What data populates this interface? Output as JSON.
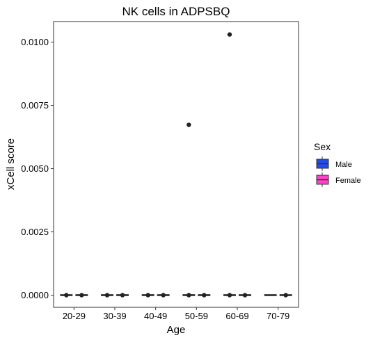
{
  "chart_data": {
    "type": "boxplot",
    "title": "NK cells in ADPSBQ",
    "xlabel": "Age",
    "ylabel": "xCell score",
    "categories": [
      "20-29",
      "30-39",
      "40-49",
      "50-59",
      "60-69",
      "70-79"
    ],
    "y_ticks": [
      "0.0000",
      "0.0025",
      "0.0050",
      "0.0075",
      "0.0100"
    ],
    "ylim": [
      -0.0005,
      0.0108
    ],
    "grid": false,
    "legend": {
      "title": "Sex",
      "position": "right",
      "entries": [
        {
          "name": "Male",
          "color": "#1f4ee8"
        },
        {
          "name": "Female",
          "color": "#ff44cc"
        }
      ]
    },
    "series": [
      {
        "name": "Male",
        "color": "#1f4ee8",
        "boxes": [
          {
            "category": "20-29",
            "min": 0,
            "q1": 0,
            "median": 0,
            "q3": 0,
            "max": 0,
            "outliers": [
              0
            ]
          },
          {
            "category": "30-39",
            "min": 0,
            "q1": 0,
            "median": 0,
            "q3": 0,
            "max": 0,
            "outliers": [
              0
            ]
          },
          {
            "category": "40-49",
            "min": 0,
            "q1": 0,
            "median": 0,
            "q3": 0,
            "max": 0,
            "outliers": [
              0
            ]
          },
          {
            "category": "50-59",
            "min": 0,
            "q1": 0,
            "median": 0,
            "q3": 0,
            "max": 0,
            "outliers": [
              0,
              0.00673
            ]
          },
          {
            "category": "60-69",
            "min": 0,
            "q1": 0,
            "median": 0,
            "q3": 0,
            "max": 0,
            "outliers": [
              0,
              0.0103
            ]
          },
          {
            "category": "70-79",
            "min": 0,
            "q1": 0,
            "median": 0,
            "q3": 0,
            "max": 0,
            "outliers": []
          }
        ]
      },
      {
        "name": "Female",
        "color": "#ff44cc",
        "boxes": [
          {
            "category": "20-29",
            "min": 0,
            "q1": 0,
            "median": 0,
            "q3": 0,
            "max": 0,
            "outliers": [
              0
            ]
          },
          {
            "category": "30-39",
            "min": 0,
            "q1": 0,
            "median": 0,
            "q3": 0,
            "max": 0,
            "outliers": [
              0
            ]
          },
          {
            "category": "40-49",
            "min": 0,
            "q1": 0,
            "median": 0,
            "q3": 0,
            "max": 0,
            "outliers": [
              0
            ]
          },
          {
            "category": "50-59",
            "min": 0,
            "q1": 0,
            "median": 0,
            "q3": 0,
            "max": 0,
            "outliers": [
              0
            ]
          },
          {
            "category": "60-69",
            "min": 0,
            "q1": 0,
            "median": 0,
            "q3": 0,
            "max": 0,
            "outliers": [
              0
            ]
          },
          {
            "category": "70-79",
            "min": 0,
            "q1": 0,
            "median": 0,
            "q3": 0,
            "max": 0,
            "outliers": [
              0
            ]
          }
        ]
      }
    ]
  }
}
